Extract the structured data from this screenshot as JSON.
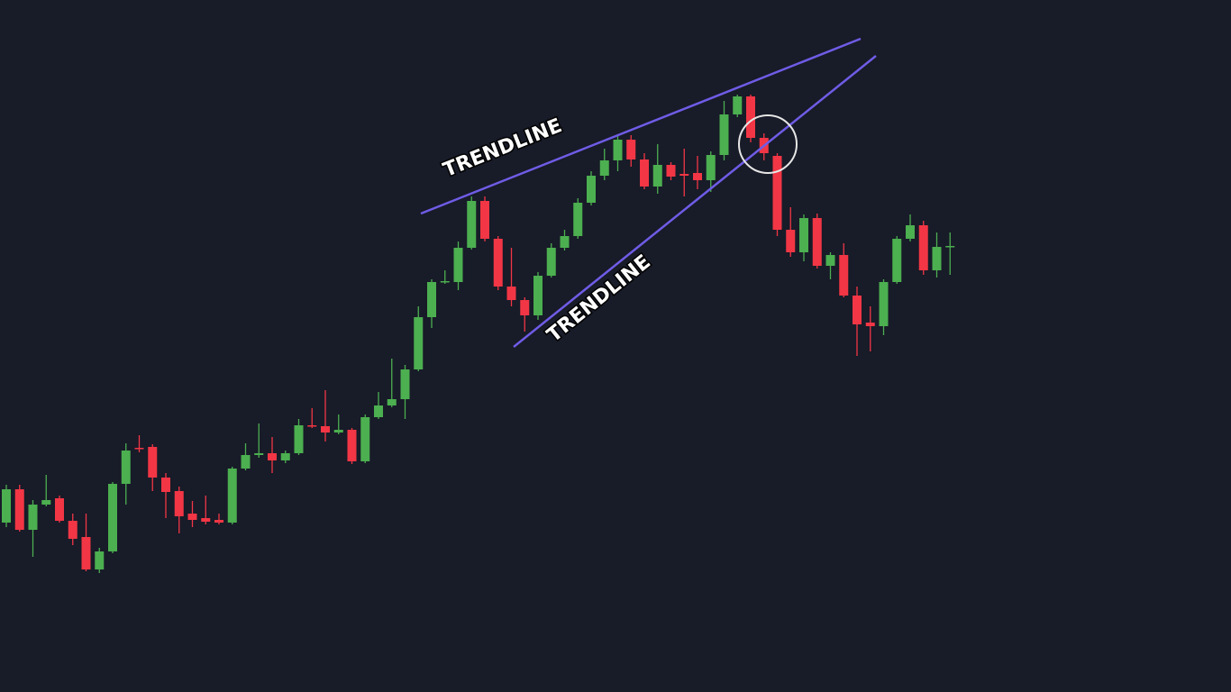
{
  "chart_data": {
    "type": "candlestick",
    "up_color": "#4caf50",
    "down_color": "#f23645",
    "ylim": [
      0,
      768
    ],
    "open": [
      188,
      225,
      180,
      208,
      215,
      190,
      172,
      136,
      156,
      231,
      271,
      272,
      238,
      223,
      198,
      193,
      191,
      188,
      248,
      263,
      265,
      257,
      265,
      296,
      295,
      288,
      291,
      256,
      305,
      318,
      325,
      358,
      416,
      455,
      455,
      493,
      545,
      503,
      450,
      435,
      418,
      462,
      493,
      506,
      543,
      573,
      590,
      613,
      591,
      561,
      585,
      575,
      576,
      568,
      596,
      641,
      661,
      615,
      595,
      513,
      488,
      526,
      473,
      485,
      440,
      410,
      406,
      455,
      503,
      518,
      468,
      494
    ],
    "high": [
      230,
      230,
      213,
      241,
      218,
      198,
      198,
      160,
      233,
      276,
      285,
      275,
      243,
      228,
      212,
      218,
      198,
      250,
      276,
      298,
      283,
      268,
      303,
      315,
      335,
      308,
      293,
      308,
      333,
      370,
      363,
      428,
      458,
      468,
      500,
      550,
      550,
      506,
      493,
      438,
      466,
      498,
      513,
      548,
      578,
      603,
      618,
      618,
      598,
      608,
      588,
      603,
      595,
      600,
      656,
      663,
      663,
      620,
      598,
      538,
      530,
      531,
      488,
      498,
      450,
      428,
      458,
      506,
      530,
      523,
      510,
      510
    ],
    "low": [
      183,
      178,
      150,
      206,
      188,
      163,
      134,
      132,
      154,
      208,
      266,
      223,
      193,
      176,
      183,
      186,
      186,
      186,
      246,
      260,
      243,
      254,
      263,
      293,
      278,
      286,
      253,
      254,
      303,
      316,
      303,
      356,
      404,
      453,
      446,
      491,
      500,
      446,
      428,
      400,
      413,
      460,
      490,
      503,
      540,
      568,
      578,
      583,
      558,
      553,
      568,
      550,
      558,
      555,
      590,
      638,
      610,
      590,
      506,
      483,
      478,
      470,
      458,
      438,
      373,
      378,
      396,
      453,
      500,
      463,
      460,
      463
    ],
    "close": [
      225,
      180,
      208,
      213,
      190,
      170,
      136,
      156,
      231,
      268,
      270,
      238,
      222,
      195,
      191,
      189,
      188,
      248,
      263,
      265,
      257,
      265,
      296,
      295,
      288,
      291,
      256,
      305,
      318,
      325,
      358,
      416,
      455,
      456,
      493,
      545,
      503,
      450,
      435,
      418,
      462,
      493,
      506,
      543,
      573,
      590,
      613,
      591,
      561,
      585,
      572,
      573,
      568,
      596,
      641,
      661,
      615,
      598,
      513,
      488,
      526,
      473,
      485,
      440,
      408,
      406,
      455,
      503,
      518,
      468,
      494,
      495
    ],
    "annotations": [
      "TRENDLINE",
      "TRENDLINE"
    ]
  }
}
